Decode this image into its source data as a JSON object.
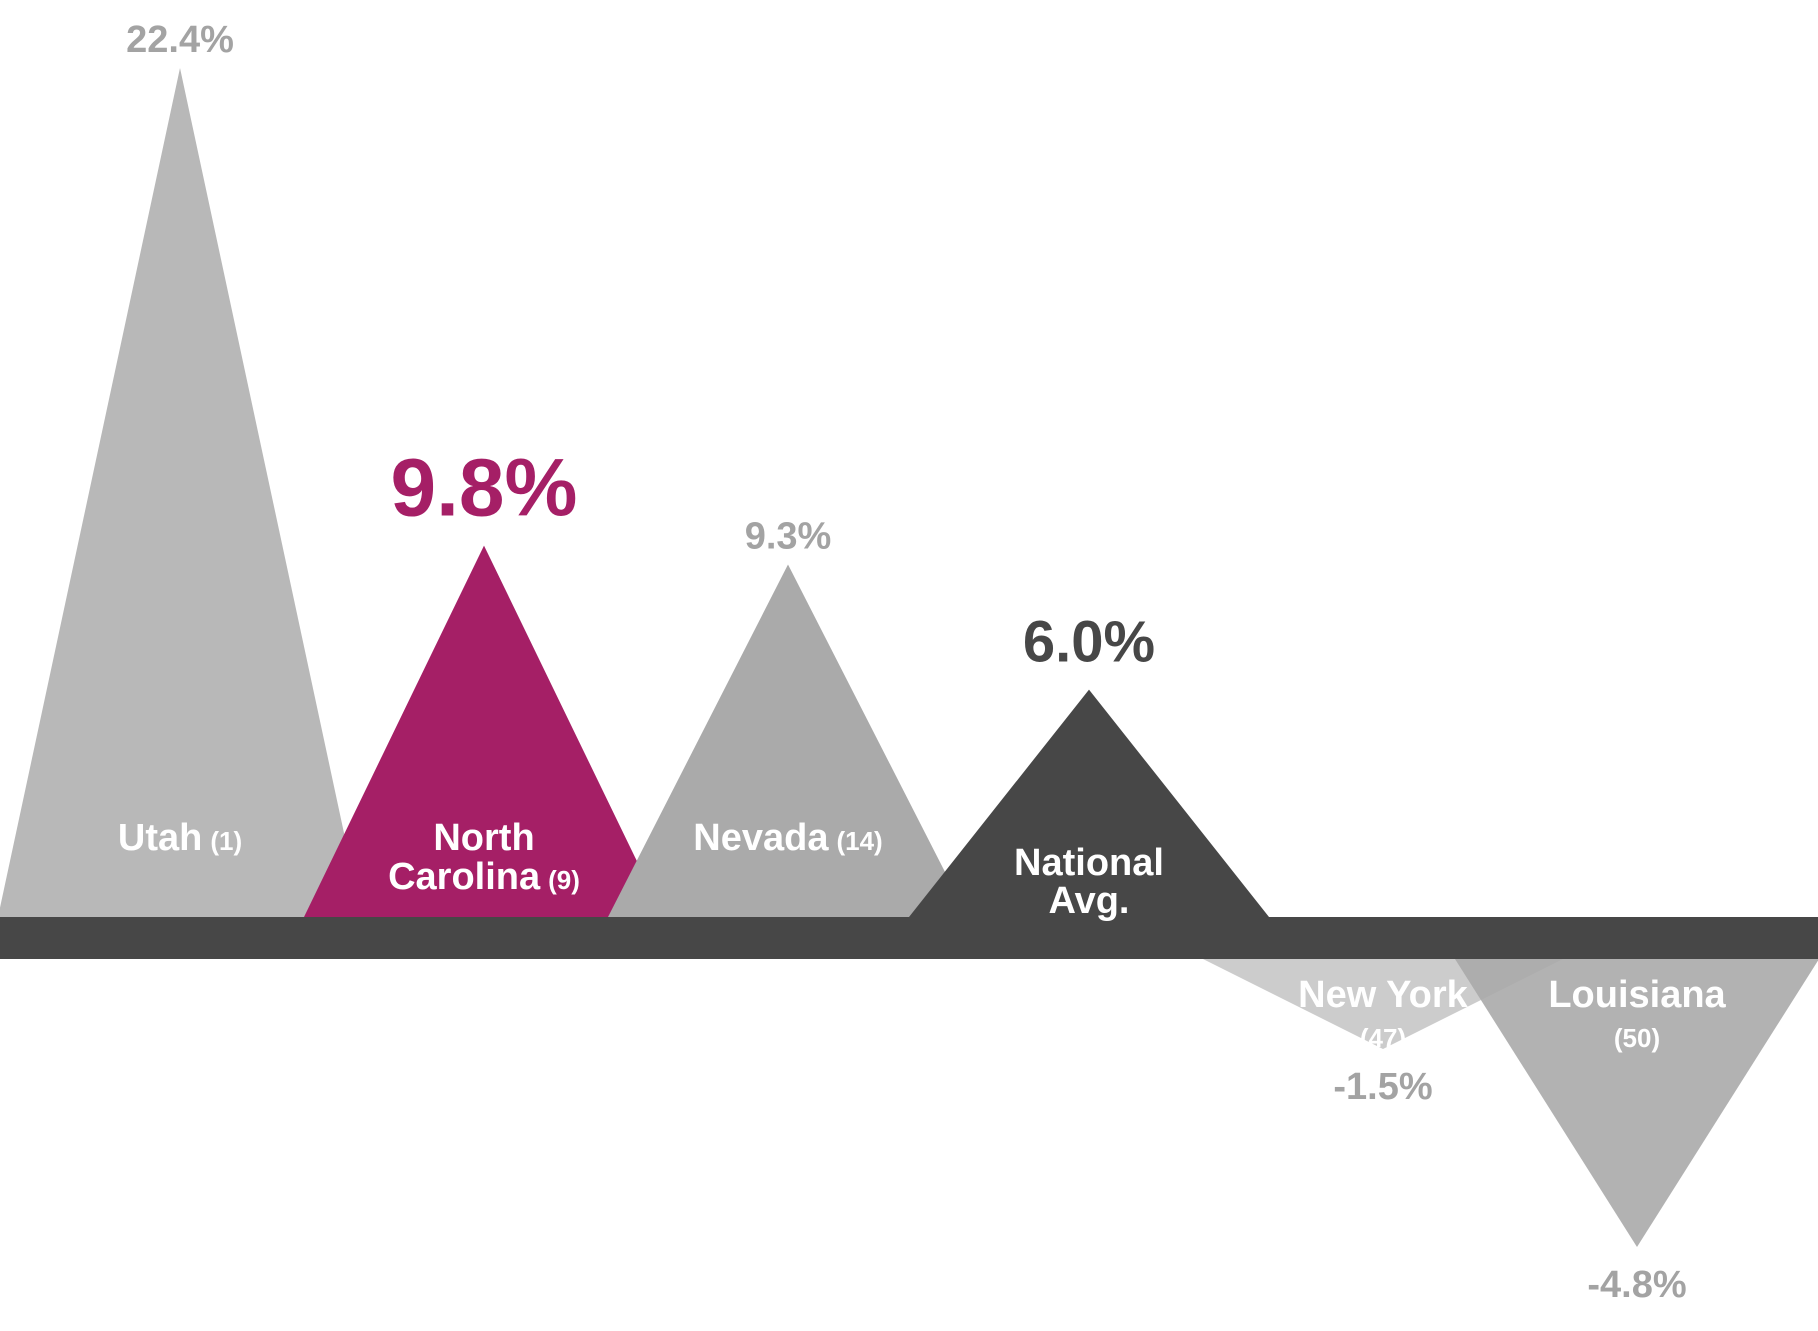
{
  "colors": {
    "baseline": "#474747",
    "highlight": "#a51f66",
    "national": "#474747",
    "light_gray": "#b8b8b8",
    "mid_gray": "#aaaaaa",
    "label_light": "#ffffff",
    "value_gray": "#a3a3a3"
  },
  "chart_data": {
    "type": "area",
    "title": "",
    "xlabel": "",
    "ylabel": "",
    "grid": false,
    "categories": [
      "Utah",
      "North Carolina",
      "Nevada",
      "National Avg.",
      "New York",
      "Louisiana"
    ],
    "values": [
      22.4,
      9.8,
      9.3,
      6.0,
      -1.5,
      -4.8
    ],
    "value_labels": [
      "22.4%",
      "9.8%",
      "9.3%",
      "6.0%",
      "-1.5%",
      "-4.8%"
    ],
    "name_lines": [
      [
        "Utah"
      ],
      [
        "North",
        "Carolina"
      ],
      [
        "Nevada"
      ],
      [
        "National",
        "Avg."
      ],
      [
        "New York"
      ],
      [
        "Louisiana"
      ]
    ],
    "ranks": [
      "(1)",
      "(9)",
      "(14)",
      "",
      "(47)",
      "(50)"
    ],
    "rank_position": [
      "inline",
      "inline",
      "inline",
      "none",
      "newline",
      "newline"
    ],
    "emphasis": [
      "normal",
      "highlight",
      "normal",
      "national",
      "normal",
      "normal"
    ]
  }
}
